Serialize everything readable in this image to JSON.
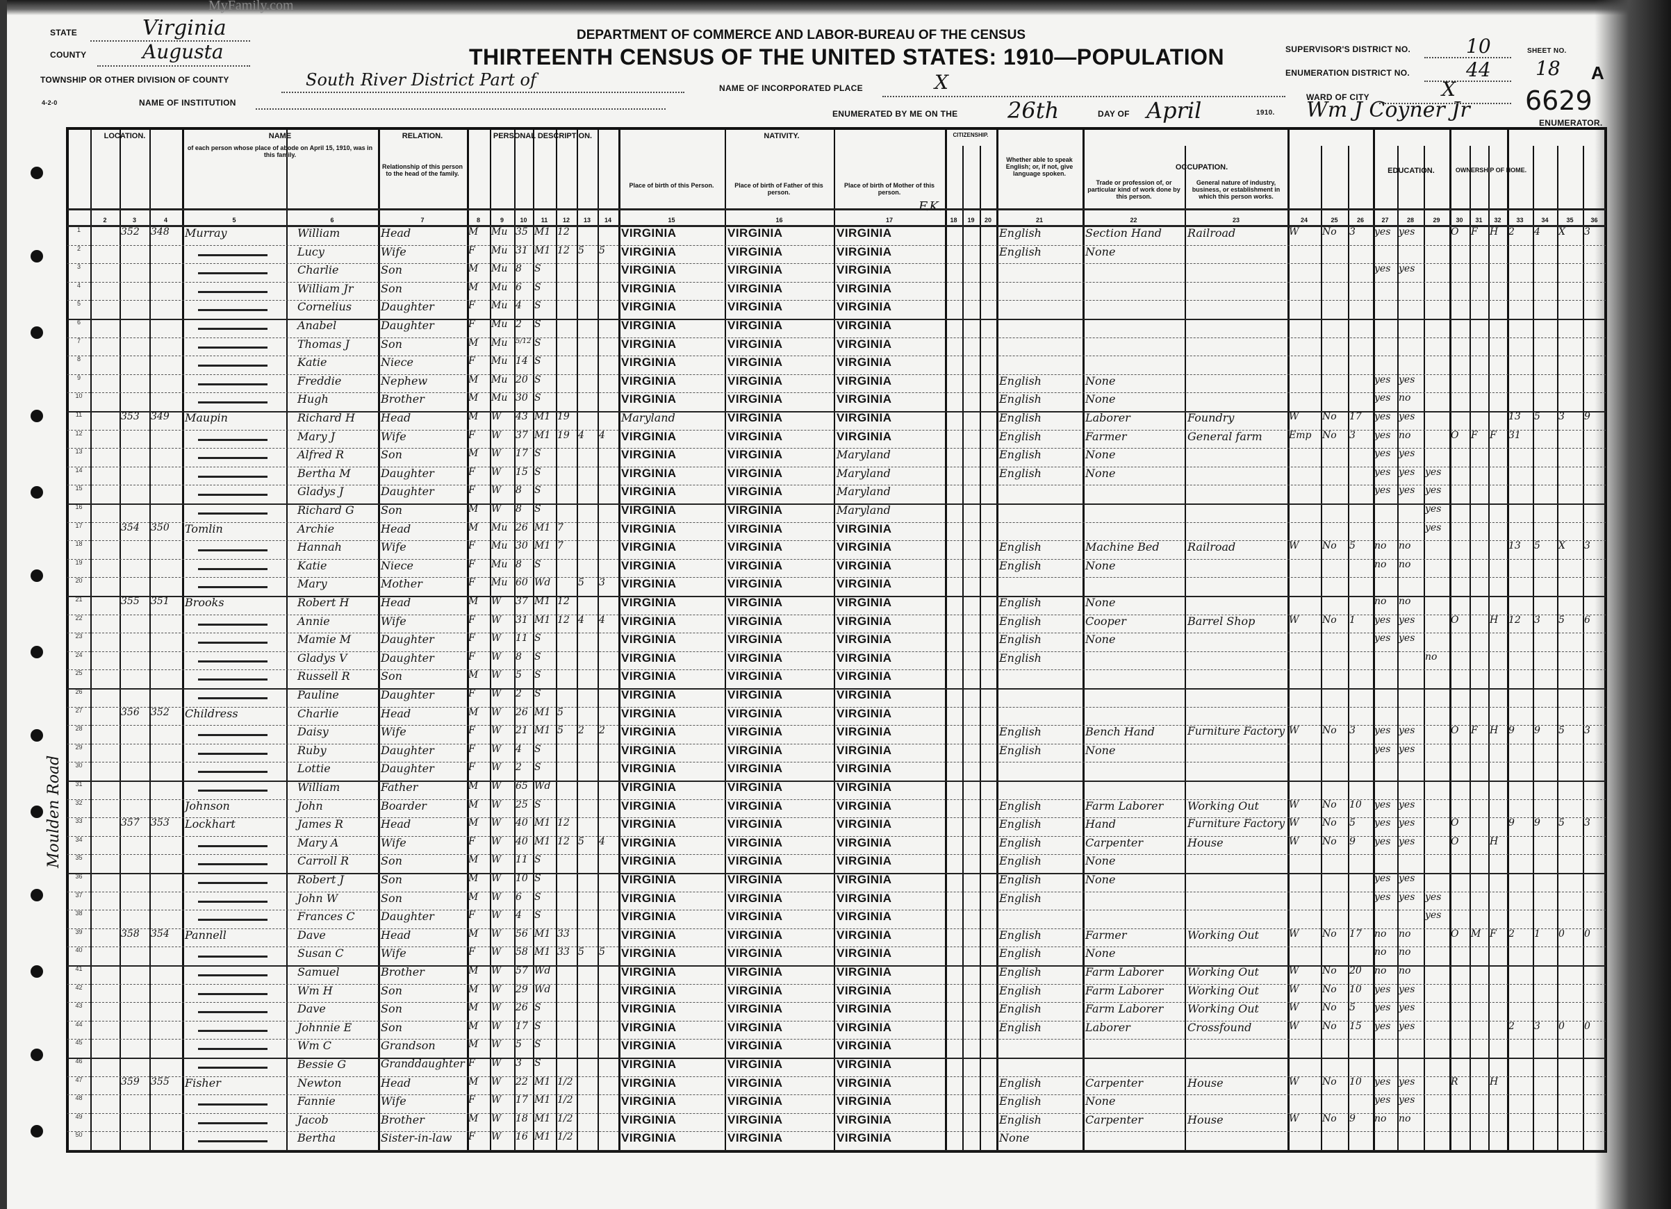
{
  "watermark": "MyFamily.com",
  "header": {
    "department": "DEPARTMENT OF COMMERCE AND LABOR-BUREAU OF THE CENSUS",
    "title": "THIRTEENTH CENSUS OF THE UNITED STATES: 1910—POPULATION",
    "state_label": "STATE",
    "state": "Virginia",
    "county_label": "COUNTY",
    "county": "Augusta",
    "township_label": "TOWNSHIP OR OTHER DIVISION OF COUNTY",
    "township": "South River District Part of",
    "place_label": "NAME OF INCORPORATED PLACE",
    "place": "X",
    "institution_label": "NAME OF INSTITUTION",
    "form_no": "4-2-0",
    "supervisor_label": "SUPERVISOR'S DISTRICT NO.",
    "supervisor_district": "10",
    "enumeration_label": "ENUMERATION DISTRICT NO.",
    "enumeration_district": "44",
    "sheet_label": "SHEET NO.",
    "sheet_no": "18",
    "sheet_letter": "A",
    "ward_label": "WARD OF CITY",
    "ward": "X",
    "enumerated_label": "ENUMERATED BY ME ON THE",
    "day": "26th",
    "day_of_label": "DAY OF",
    "month": "April",
    "year": "1910.",
    "enumerator": "Wm J Coyner Jr",
    "enumerator_label": "ENUMERATOR.",
    "stamp_number": "6629",
    "side_note": "Moulden Road",
    "fk_note": "F.K."
  },
  "column_groups": {
    "location": "LOCATION.",
    "name": "NAME",
    "relation": "RELATION.",
    "personal": "PERSONAL DESCRIPTION.",
    "nativity": "NATIVITY.",
    "citizenship": "CITIZENSHIP.",
    "language": "Whether able to speak English; or, if not, give language spoken.",
    "occupation": "OCCUPATION.",
    "education": "EDUCATION.",
    "ownership": "OWNERSHIP OF HOME.",
    "name_desc": "of each person whose place of abode on April 15, 1910, was in this family.",
    "relation_desc": "Relationship of this person to the head of the family.",
    "bp_person": "Place of birth of this Person.",
    "bp_father": "Place of birth of Father of this person.",
    "bp_mother": "Place of birth of Mother of this person.",
    "trade": "Trade or profession of, or particular kind of work done by this person.",
    "industry": "General nature of industry, business, or establishment in which this person works."
  },
  "rows": [
    {
      "dwelling": "352",
      "family": "348",
      "surname": "Murray",
      "given": "William",
      "relation": "Head",
      "sex": "M",
      "race": "Mu",
      "age": "35",
      "marital": "M1",
      "yrs": "12",
      "bp": "VIRGINIA",
      "fbp": "VIRGINIA",
      "mbp": "VIRGINIA",
      "lang": "English",
      "occ": "Section Hand",
      "ind": "Railroad",
      "emp": "W",
      "oow": "No",
      "weeks": "3",
      "read": "yes",
      "write": "yes",
      "owned": "O",
      "free": "F",
      "farm": "H",
      "sched": "2",
      "vet": "4",
      "blind": "X",
      "deaf": "3"
    },
    {
      "given": "Lucy",
      "relation": "Wife",
      "sex": "F",
      "race": "Mu",
      "age": "31",
      "marital": "M1",
      "yrs": "12",
      "born": "5",
      "living": "5",
      "bp": "VIRGINIA",
      "fbp": "VIRGINIA",
      "mbp": "VIRGINIA",
      "lang": "English",
      "occ": "None"
    },
    {
      "given": "Charlie",
      "relation": "Son",
      "sex": "M",
      "race": "Mu",
      "age": "8",
      "marital": "S",
      "bp": "VIRGINIA",
      "fbp": "VIRGINIA",
      "mbp": "VIRGINIA",
      "read": "yes",
      "write": "yes"
    },
    {
      "given": "William Jr",
      "relation": "Son",
      "sex": "M",
      "race": "Mu",
      "age": "6",
      "marital": "S",
      "bp": "VIRGINIA",
      "fbp": "VIRGINIA",
      "mbp": "VIRGINIA"
    },
    {
      "given": "Cornelius",
      "relation": "Daughter",
      "sex": "F",
      "race": "Mu",
      "age": "4",
      "marital": "S",
      "bp": "VIRGINIA",
      "fbp": "VIRGINIA",
      "mbp": "VIRGINIA"
    },
    {
      "given": "Anabel",
      "relation": "Daughter",
      "sex": "F",
      "race": "Mu",
      "age": "2",
      "marital": "S",
      "bp": "VIRGINIA",
      "fbp": "VIRGINIA",
      "mbp": "VIRGINIA"
    },
    {
      "given": "Thomas J",
      "relation": "Son",
      "sex": "M",
      "race": "Mu",
      "age": "5/12",
      "marital": "S",
      "bp": "VIRGINIA",
      "fbp": "VIRGINIA",
      "mbp": "VIRGINIA"
    },
    {
      "given": "Katie",
      "relation": "Niece",
      "sex": "F",
      "race": "Mu",
      "age": "14",
      "marital": "S",
      "bp": "VIRGINIA",
      "fbp": "VIRGINIA",
      "mbp": "VIRGINIA"
    },
    {
      "given": "Freddie",
      "relation": "Nephew",
      "sex": "M",
      "race": "Mu",
      "age": "20",
      "marital": "S",
      "bp": "VIRGINIA",
      "fbp": "VIRGINIA",
      "mbp": "VIRGINIA",
      "lang": "English",
      "occ": "None",
      "read": "yes",
      "write": "yes"
    },
    {
      "given": "Hugh",
      "relation": "Brother",
      "sex": "M",
      "race": "Mu",
      "age": "30",
      "marital": "S",
      "bp": "VIRGINIA",
      "fbp": "VIRGINIA",
      "mbp": "VIRGINIA",
      "lang": "English",
      "occ": "None",
      "read": "yes",
      "write": "no"
    },
    {
      "dwelling": "353",
      "family": "349",
      "surname": "Maupin",
      "given": "Richard H",
      "relation": "Head",
      "sex": "M",
      "race": "W",
      "age": "43",
      "marital": "M1",
      "yrs": "19",
      "bp": "Maryland",
      "fbp": "VIRGINIA",
      "mbp": "VIRGINIA",
      "lang": "English",
      "occ": "Laborer",
      "ind": "Foundry",
      "emp": "W",
      "oow": "No",
      "weeks": "17",
      "read": "yes",
      "write": "yes",
      "sched": "13",
      "vet": "5",
      "blind": "3",
      "deaf": "9"
    },
    {
      "given": "Mary J",
      "relation": "Wife",
      "sex": "F",
      "race": "W",
      "age": "37",
      "marital": "M1",
      "yrs": "19",
      "born": "4",
      "living": "4",
      "bp": "VIRGINIA",
      "fbp": "VIRGINIA",
      "mbp": "VIRGINIA",
      "lang": "English",
      "occ": "Farmer",
      "ind": "General farm",
      "emp": "Emp",
      "oow": "No",
      "weeks": "3",
      "read": "yes",
      "write": "no",
      "owned": "O",
      "free": "F",
      "farm": "F",
      "sched": "31"
    },
    {
      "given": "Alfred R",
      "relation": "Son",
      "sex": "M",
      "race": "W",
      "age": "17",
      "marital": "S",
      "bp": "VIRGINIA",
      "fbp": "VIRGINIA",
      "mbp": "Maryland",
      "lang": "English",
      "occ": "None",
      "read": "yes",
      "write": "yes"
    },
    {
      "given": "Bertha M",
      "relation": "Daughter",
      "sex": "F",
      "race": "W",
      "age": "15",
      "marital": "S",
      "bp": "VIRGINIA",
      "fbp": "VIRGINIA",
      "mbp": "Maryland",
      "lang": "English",
      "occ": "None",
      "read": "yes",
      "write": "yes",
      "school": "yes"
    },
    {
      "given": "Gladys J",
      "relation": "Daughter",
      "sex": "F",
      "race": "W",
      "age": "8",
      "marital": "S",
      "bp": "VIRGINIA",
      "fbp": "VIRGINIA",
      "mbp": "Maryland",
      "read": "yes",
      "write": "yes",
      "school": "yes"
    },
    {
      "given": "Richard G",
      "relation": "Son",
      "sex": "M",
      "race": "W",
      "age": "8",
      "marital": "S",
      "bp": "VIRGINIA",
      "fbp": "VIRGINIA",
      "mbp": "Maryland",
      "school": "yes"
    },
    {
      "dwelling": "354",
      "family": "350",
      "surname": "Tomlin",
      "given": "Archie",
      "relation": "Head",
      "sex": "M",
      "race": "Mu",
      "age": "26",
      "marital": "M1",
      "yrs": "7",
      "bp": "VIRGINIA",
      "fbp": "VIRGINIA",
      "mbp": "VIRGINIA",
      "school": "yes"
    },
    {
      "given": "Hannah",
      "relation": "Wife",
      "sex": "F",
      "race": "Mu",
      "age": "30",
      "marital": "M1",
      "yrs": "7",
      "bp": "VIRGINIA",
      "fbp": "VIRGINIA",
      "mbp": "VIRGINIA",
      "lang": "English",
      "occ": "Machine Bed",
      "ind": "Railroad",
      "emp": "W",
      "oow": "No",
      "weeks": "5",
      "read": "no",
      "write": "no",
      "sched": "13",
      "vet": "5",
      "blind": "X",
      "deaf": "3"
    },
    {
      "given": "Katie",
      "relation": "Niece",
      "sex": "F",
      "race": "Mu",
      "age": "8",
      "marital": "S",
      "bp": "VIRGINIA",
      "fbp": "VIRGINIA",
      "mbp": "VIRGINIA",
      "lang": "English",
      "occ": "None",
      "read": "no",
      "write": "no"
    },
    {
      "given": "Mary",
      "relation": "Mother",
      "sex": "F",
      "race": "Mu",
      "age": "60",
      "marital": "Wd",
      "born": "5",
      "living": "3",
      "bp": "VIRGINIA",
      "fbp": "VIRGINIA",
      "mbp": "VIRGINIA"
    },
    {
      "dwelling": "355",
      "family": "351",
      "surname": "Brooks",
      "given": "Robert H",
      "relation": "Head",
      "sex": "M",
      "race": "W",
      "age": "37",
      "marital": "M1",
      "yrs": "12",
      "bp": "VIRGINIA",
      "fbp": "VIRGINIA",
      "mbp": "VIRGINIA",
      "lang": "English",
      "occ": "None",
      "read": "no",
      "write": "no"
    },
    {
      "given": "Annie",
      "relation": "Wife",
      "sex": "F",
      "race": "W",
      "age": "31",
      "marital": "M1",
      "yrs": "12",
      "born": "4",
      "living": "4",
      "bp": "VIRGINIA",
      "fbp": "VIRGINIA",
      "mbp": "VIRGINIA",
      "lang": "English",
      "occ": "Cooper",
      "ind": "Barrel Shop",
      "emp": "W",
      "oow": "No",
      "weeks": "1",
      "read": "yes",
      "write": "yes",
      "owned": "O",
      "farm": "H",
      "sched": "12",
      "vet": "3",
      "blind": "5",
      "deaf": "6"
    },
    {
      "given": "Mamie M",
      "relation": "Daughter",
      "sex": "F",
      "race": "W",
      "age": "11",
      "marital": "S",
      "bp": "VIRGINIA",
      "fbp": "VIRGINIA",
      "mbp": "VIRGINIA",
      "lang": "English",
      "occ": "None",
      "read": "yes",
      "write": "yes"
    },
    {
      "given": "Gladys V",
      "relation": "Daughter",
      "sex": "F",
      "race": "W",
      "age": "8",
      "marital": "S",
      "bp": "VIRGINIA",
      "fbp": "VIRGINIA",
      "mbp": "VIRGINIA",
      "lang": "English",
      "school": "no"
    },
    {
      "given": "Russell R",
      "relation": "Son",
      "sex": "M",
      "race": "W",
      "age": "5",
      "marital": "S",
      "bp": "VIRGINIA",
      "fbp": "VIRGINIA",
      "mbp": "VIRGINIA"
    },
    {
      "given": "Pauline",
      "relation": "Daughter",
      "sex": "F",
      "race": "W",
      "age": "2",
      "marital": "S",
      "bp": "VIRGINIA",
      "fbp": "VIRGINIA",
      "mbp": "VIRGINIA"
    },
    {
      "dwelling": "356",
      "family": "352",
      "surname": "Childress",
      "given": "Charlie",
      "relation": "Head",
      "sex": "M",
      "race": "W",
      "age": "26",
      "marital": "M1",
      "yrs": "5",
      "bp": "VIRGINIA",
      "fbp": "VIRGINIA",
      "mbp": "VIRGINIA"
    },
    {
      "given": "Daisy",
      "relation": "Wife",
      "sex": "F",
      "race": "W",
      "age": "21",
      "marital": "M1",
      "yrs": "5",
      "born": "2",
      "living": "2",
      "bp": "VIRGINIA",
      "fbp": "VIRGINIA",
      "mbp": "VIRGINIA",
      "lang": "English",
      "occ": "Bench Hand",
      "ind": "Furniture Factory",
      "emp": "W",
      "oow": "No",
      "weeks": "3",
      "read": "yes",
      "write": "yes",
      "owned": "O",
      "free": "F",
      "farm": "H",
      "sched": "9",
      "vet": "9",
      "blind": "5",
      "deaf": "3"
    },
    {
      "given": "Ruby",
      "relation": "Daughter",
      "sex": "F",
      "race": "W",
      "age": "4",
      "marital": "S",
      "bp": "VIRGINIA",
      "fbp": "VIRGINIA",
      "mbp": "VIRGINIA",
      "lang": "English",
      "occ": "None",
      "read": "yes",
      "write": "yes"
    },
    {
      "given": "Lottie",
      "relation": "Daughter",
      "sex": "F",
      "race": "W",
      "age": "2",
      "marital": "S",
      "bp": "VIRGINIA",
      "fbp": "VIRGINIA",
      "mbp": "VIRGINIA"
    },
    {
      "given": "William",
      "relation": "Father",
      "sex": "M",
      "race": "W",
      "age": "65",
      "marital": "Wd",
      "bp": "VIRGINIA",
      "fbp": "VIRGINIA",
      "mbp": "VIRGINIA"
    },
    {
      "surname": "Johnson",
      "given": "John",
      "relation": "Boarder",
      "sex": "M",
      "race": "W",
      "age": "25",
      "marital": "S",
      "bp": "VIRGINIA",
      "fbp": "VIRGINIA",
      "mbp": "VIRGINIA",
      "lang": "English",
      "occ": "Farm Laborer",
      "ind": "Working Out",
      "emp": "W",
      "oow": "No",
      "weeks": "10",
      "read": "yes",
      "write": "yes"
    },
    {
      "dwelling": "357",
      "family": "353",
      "surname": "Lockhart",
      "given": "James R",
      "relation": "Head",
      "sex": "M",
      "race": "W",
      "age": "40",
      "marital": "M1",
      "yrs": "12",
      "bp": "VIRGINIA",
      "fbp": "VIRGINIA",
      "mbp": "VIRGINIA",
      "lang": "English",
      "occ": "Hand",
      "ind": "Furniture Factory",
      "emp": "W",
      "oow": "No",
      "weeks": "5",
      "read": "yes",
      "write": "yes",
      "owned": "O",
      "sched": "9",
      "vet": "9",
      "blind": "5",
      "deaf": "3"
    },
    {
      "given": "Mary A",
      "relation": "Wife",
      "sex": "F",
      "race": "W",
      "age": "40",
      "marital": "M1",
      "yrs": "12",
      "born": "5",
      "living": "4",
      "bp": "VIRGINIA",
      "fbp": "VIRGINIA",
      "mbp": "VIRGINIA",
      "lang": "English",
      "occ": "Carpenter",
      "ind": "House",
      "emp": "W",
      "oow": "No",
      "weeks": "9",
      "read": "yes",
      "write": "yes",
      "owned": "O",
      "farm": "H"
    },
    {
      "given": "Carroll R",
      "relation": "Son",
      "sex": "M",
      "race": "W",
      "age": "11",
      "marital": "S",
      "bp": "VIRGINIA",
      "fbp": "VIRGINIA",
      "mbp": "VIRGINIA",
      "lang": "English",
      "occ": "None"
    },
    {
      "given": "Robert J",
      "relation": "Son",
      "sex": "M",
      "race": "W",
      "age": "10",
      "marital": "S",
      "bp": "VIRGINIA",
      "fbp": "VIRGINIA",
      "mbp": "VIRGINIA",
      "lang": "English",
      "occ": "None",
      "read": "yes",
      "write": "yes"
    },
    {
      "given": "John W",
      "relation": "Son",
      "sex": "M",
      "race": "W",
      "age": "6",
      "marital": "S",
      "bp": "VIRGINIA",
      "fbp": "VIRGINIA",
      "mbp": "VIRGINIA",
      "lang": "English",
      "read": "yes",
      "write": "yes",
      "school": "yes"
    },
    {
      "given": "Frances C",
      "relation": "Daughter",
      "sex": "F",
      "race": "W",
      "age": "4",
      "marital": "S",
      "bp": "VIRGINIA",
      "fbp": "VIRGINIA",
      "mbp": "VIRGINIA",
      "school": "yes"
    },
    {
      "dwelling": "358",
      "family": "354",
      "surname": "Pannell",
      "given": "Dave",
      "relation": "Head",
      "sex": "M",
      "race": "W",
      "age": "56",
      "marital": "M1",
      "yrs": "33",
      "bp": "VIRGINIA",
      "fbp": "VIRGINIA",
      "mbp": "VIRGINIA",
      "lang": "English",
      "occ": "Farmer",
      "ind": "Working Out",
      "emp": "W",
      "oow": "No",
      "weeks": "17",
      "read": "no",
      "write": "no",
      "owned": "O",
      "free": "M",
      "farm": "F",
      "sched": "2",
      "vet": "1",
      "blind": "0",
      "deaf": "0"
    },
    {
      "given": "Susan C",
      "relation": "Wife",
      "sex": "F",
      "race": "W",
      "age": "58",
      "marital": "M1",
      "yrs": "33",
      "born": "5",
      "living": "5",
      "bp": "VIRGINIA",
      "fbp": "VIRGINIA",
      "mbp": "VIRGINIA",
      "lang": "English",
      "occ": "None",
      "read": "no",
      "write": "no"
    },
    {
      "given": "Samuel",
      "relation": "Brother",
      "sex": "M",
      "race": "W",
      "age": "57",
      "marital": "Wd",
      "bp": "VIRGINIA",
      "fbp": "VIRGINIA",
      "mbp": "VIRGINIA",
      "lang": "English",
      "occ": "Farm Laborer",
      "ind": "Working Out",
      "emp": "W",
      "oow": "No",
      "weeks": "20",
      "read": "no",
      "write": "no"
    },
    {
      "given": "Wm H",
      "relation": "Son",
      "sex": "M",
      "race": "W",
      "age": "29",
      "marital": "Wd",
      "bp": "VIRGINIA",
      "fbp": "VIRGINIA",
      "mbp": "VIRGINIA",
      "lang": "English",
      "occ": "Farm Laborer",
      "ind": "Working Out",
      "emp": "W",
      "oow": "No",
      "weeks": "10",
      "read": "yes",
      "write": "yes"
    },
    {
      "given": "Dave",
      "relation": "Son",
      "sex": "M",
      "race": "W",
      "age": "26",
      "marital": "S",
      "bp": "VIRGINIA",
      "fbp": "VIRGINIA",
      "mbp": "VIRGINIA",
      "lang": "English",
      "occ": "Farm Laborer",
      "ind": "Working Out",
      "emp": "W",
      "oow": "No",
      "weeks": "5",
      "read": "yes",
      "write": "yes"
    },
    {
      "given": "Johnnie E",
      "relation": "Son",
      "sex": "M",
      "race": "W",
      "age": "17",
      "marital": "S",
      "bp": "VIRGINIA",
      "fbp": "VIRGINIA",
      "mbp": "VIRGINIA",
      "lang": "English",
      "occ": "Laborer",
      "ind": "Crossfound",
      "emp": "W",
      "oow": "No",
      "weeks": "15",
      "read": "yes",
      "write": "yes",
      "sched": "2",
      "vet": "3",
      "blind": "0",
      "deaf": "0"
    },
    {
      "given": "Wm C",
      "relation": "Grandson",
      "sex": "M",
      "race": "W",
      "age": "5",
      "marital": "S",
      "bp": "VIRGINIA",
      "fbp": "VIRGINIA",
      "mbp": "VIRGINIA"
    },
    {
      "given": "Bessie G",
      "relation": "Granddaughter",
      "sex": "F",
      "race": "W",
      "age": "3",
      "marital": "S",
      "bp": "VIRGINIA",
      "fbp": "VIRGINIA",
      "mbp": "VIRGINIA"
    },
    {
      "dwelling": "359",
      "family": "355",
      "surname": "Fisher",
      "given": "Newton",
      "relation": "Head",
      "sex": "M",
      "race": "W",
      "age": "22",
      "marital": "M1",
      "yrs": "1/2",
      "bp": "VIRGINIA",
      "fbp": "VIRGINIA",
      "mbp": "VIRGINIA",
      "lang": "English",
      "occ": "Carpenter",
      "ind": "House",
      "emp": "W",
      "oow": "No",
      "weeks": "10",
      "read": "yes",
      "write": "yes",
      "owned": "R",
      "farm": "H"
    },
    {
      "given": "Fannie",
      "relation": "Wife",
      "sex": "F",
      "race": "W",
      "age": "17",
      "marital": "M1",
      "yrs": "1/2",
      "bp": "VIRGINIA",
      "fbp": "VIRGINIA",
      "mbp": "VIRGINIA",
      "lang": "English",
      "occ": "None",
      "read": "yes",
      "write": "yes"
    },
    {
      "given": "Jacob",
      "relation": "Brother",
      "sex": "M",
      "race": "W",
      "age": "18",
      "marital": "M1",
      "yrs": "1/2",
      "bp": "VIRGINIA",
      "fbp": "VIRGINIA",
      "mbp": "VIRGINIA",
      "lang": "English",
      "occ": "Carpenter",
      "ind": "House",
      "emp": "W",
      "oow": "No",
      "weeks": "9",
      "read": "no",
      "write": "no"
    },
    {
      "given": "Bertha",
      "relation": "Sister-in-law",
      "sex": "F",
      "race": "W",
      "age": "16",
      "marital": "M1",
      "yrs": "1/2",
      "bp": "VIRGINIA",
      "fbp": "VIRGINIA",
      "mbp": "VIRGINIA",
      "lang": "None"
    }
  ]
}
